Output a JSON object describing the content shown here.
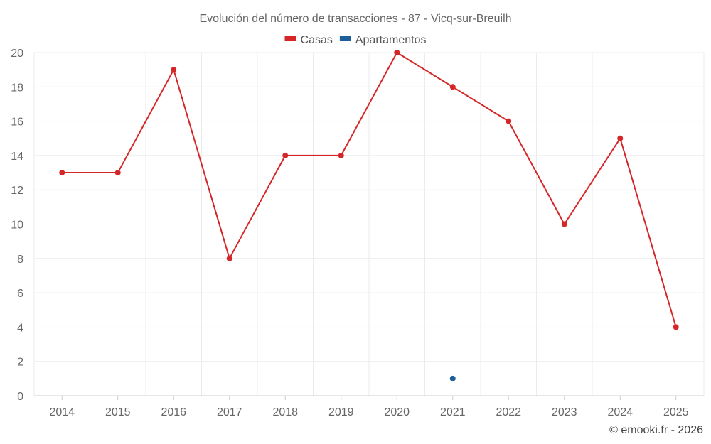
{
  "chart_data": {
    "type": "line",
    "title": "Evolución del número de transacciones - 87 - Vicq-sur-Breuilh",
    "categories": [
      "2014",
      "2015",
      "2016",
      "2017",
      "2018",
      "2019",
      "2020",
      "2021",
      "2022",
      "2023",
      "2024",
      "2025"
    ],
    "ylim": [
      0,
      20
    ],
    "yticks": [
      0,
      2,
      4,
      6,
      8,
      10,
      12,
      14,
      16,
      18,
      20
    ],
    "grid": true,
    "legend_position": "top-center",
    "series": [
      {
        "name": "Casas",
        "color": "#d62728",
        "values": [
          13,
          13,
          19,
          8,
          14,
          14,
          20,
          18,
          16,
          10,
          15,
          4
        ]
      },
      {
        "name": "Apartamentos",
        "color": "#1f5f99",
        "values": [
          null,
          null,
          null,
          null,
          null,
          null,
          null,
          1,
          null,
          null,
          null,
          null
        ]
      }
    ],
    "xlabel": "",
    "ylabel": ""
  },
  "credit": "© emooki.fr - 2026"
}
